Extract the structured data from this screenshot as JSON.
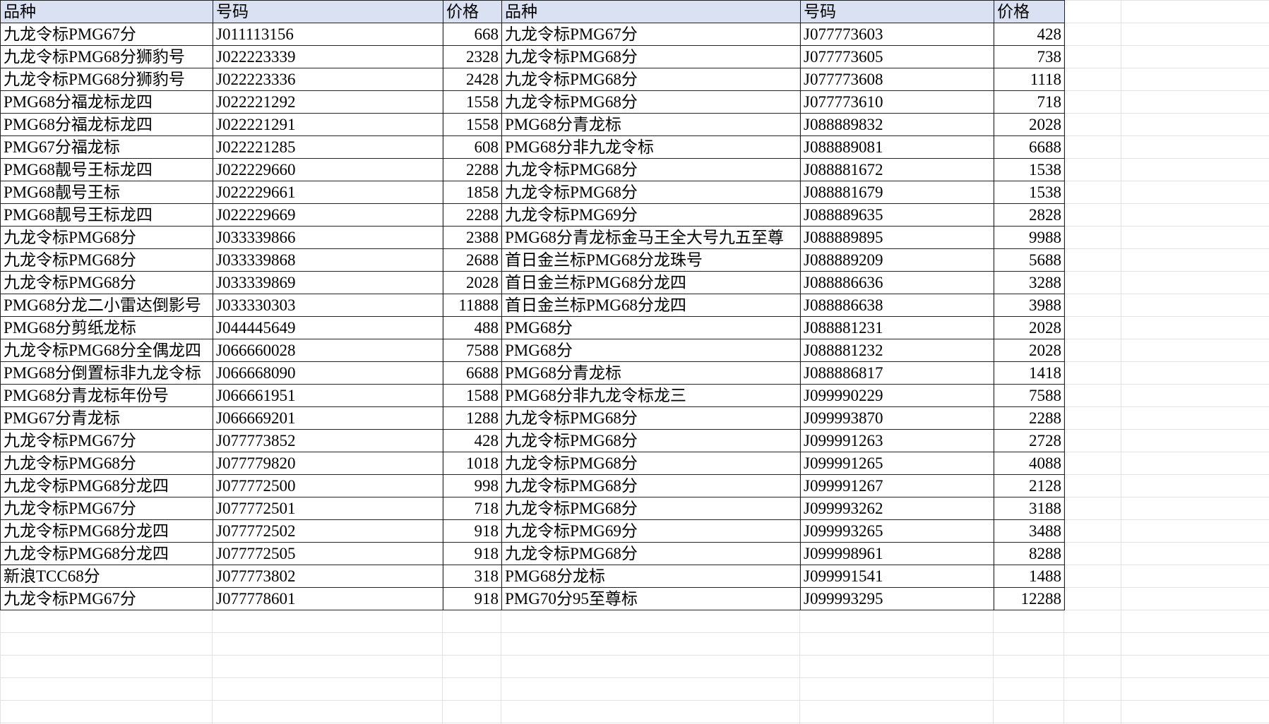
{
  "header_color": "#d9e1f2",
  "headers": [
    "品种",
    "号码",
    "价格",
    "品种",
    "号码",
    "价格"
  ],
  "rows": [
    [
      "九龙令标PMG67分",
      "J011113156",
      "668",
      "九龙令标PMG67分",
      "J077773603",
      "428"
    ],
    [
      "九龙令标PMG68分狮豹号",
      "J022223339",
      "2328",
      "九龙令标PMG68分",
      "J077773605",
      "738"
    ],
    [
      "九龙令标PMG68分狮豹号",
      "J022223336",
      "2428",
      "九龙令标PMG68分",
      "J077773608",
      "1118"
    ],
    [
      "PMG68分福龙标龙四",
      "J022221292",
      "1558",
      "九龙令标PMG68分",
      "J077773610",
      "718"
    ],
    [
      "PMG68分福龙标龙四",
      "J022221291",
      "1558",
      "PMG68分青龙标",
      "J088889832",
      "2028"
    ],
    [
      "PMG67分福龙标",
      "J022221285",
      "608",
      "PMG68分非九龙令标",
      "J088889081",
      "6688"
    ],
    [
      "PMG68靓号王标龙四",
      "J022229660",
      "2288",
      "九龙令标PMG68分",
      "J088881672",
      "1538"
    ],
    [
      "PMG68靓号王标",
      "J022229661",
      "1858",
      "九龙令标PMG68分",
      "J088881679",
      "1538"
    ],
    [
      "PMG68靓号王标龙四",
      "J022229669",
      "2288",
      "九龙令标PMG69分",
      "J088889635",
      "2828"
    ],
    [
      "九龙令标PMG68分",
      "J033339866",
      "2388",
      "PMG68分青龙标金马王全大号九五至尊",
      "J088889895",
      "9988"
    ],
    [
      "九龙令标PMG68分",
      "J033339868",
      "2688",
      "首日金兰标PMG68分龙珠号",
      "J088889209",
      "5688"
    ],
    [
      "九龙令标PMG68分",
      "J033339869",
      "2028",
      "首日金兰标PMG68分龙四",
      "J088886636",
      "3288"
    ],
    [
      "PMG68分龙二小雷达倒影号",
      "J033330303",
      "11888",
      "首日金兰标PMG68分龙四",
      "J088886638",
      "3988"
    ],
    [
      "PMG68分剪纸龙标",
      "J044445649",
      "488",
      "PMG68分",
      "J088881231",
      "2028"
    ],
    [
      "九龙令标PMG68分全偶龙四",
      "J066660028",
      "7588",
      "PMG68分",
      "J088881232",
      "2028"
    ],
    [
      "PMG68分倒置标非九龙令标",
      "J066668090",
      "6688",
      "PMG68分青龙标",
      "J088886817",
      "1418"
    ],
    [
      "PMG68分青龙标年份号",
      "J066661951",
      "1588",
      "PMG68分非九龙令标龙三",
      "J099990229",
      "7588"
    ],
    [
      "PMG67分青龙标",
      "J066669201",
      "1288",
      "九龙令标PMG68分",
      "J099993870",
      "2288"
    ],
    [
      "九龙令标PMG67分",
      "J077773852",
      "428",
      "九龙令标PMG68分",
      "J099991263",
      "2728"
    ],
    [
      "九龙令标PMG68分",
      "J077779820",
      "1018",
      "九龙令标PMG68分",
      "J099991265",
      "4088"
    ],
    [
      "九龙令标PMG68分龙四",
      "J077772500",
      "998",
      "九龙令标PMG68分",
      "J099991267",
      "2128"
    ],
    [
      "九龙令标PMG67分",
      "J077772501",
      "718",
      "九龙令标PMG68分",
      "J099993262",
      "3188"
    ],
    [
      "九龙令标PMG68分龙四",
      "J077772502",
      "918",
      "九龙令标PMG69分",
      "J099993265",
      "3488"
    ],
    [
      "九龙令标PMG68分龙四",
      "J077772505",
      "918",
      "九龙令标PMG68分",
      "J099998961",
      "8288"
    ],
    [
      "新浪TCC68分",
      "J077773802",
      "318",
      "PMG68分龙标",
      "J099991541",
      "1488"
    ],
    [
      "九龙令标PMG67分",
      "J077778601",
      "918",
      "PMG70分95至尊标",
      "J099993295",
      "12288"
    ]
  ]
}
